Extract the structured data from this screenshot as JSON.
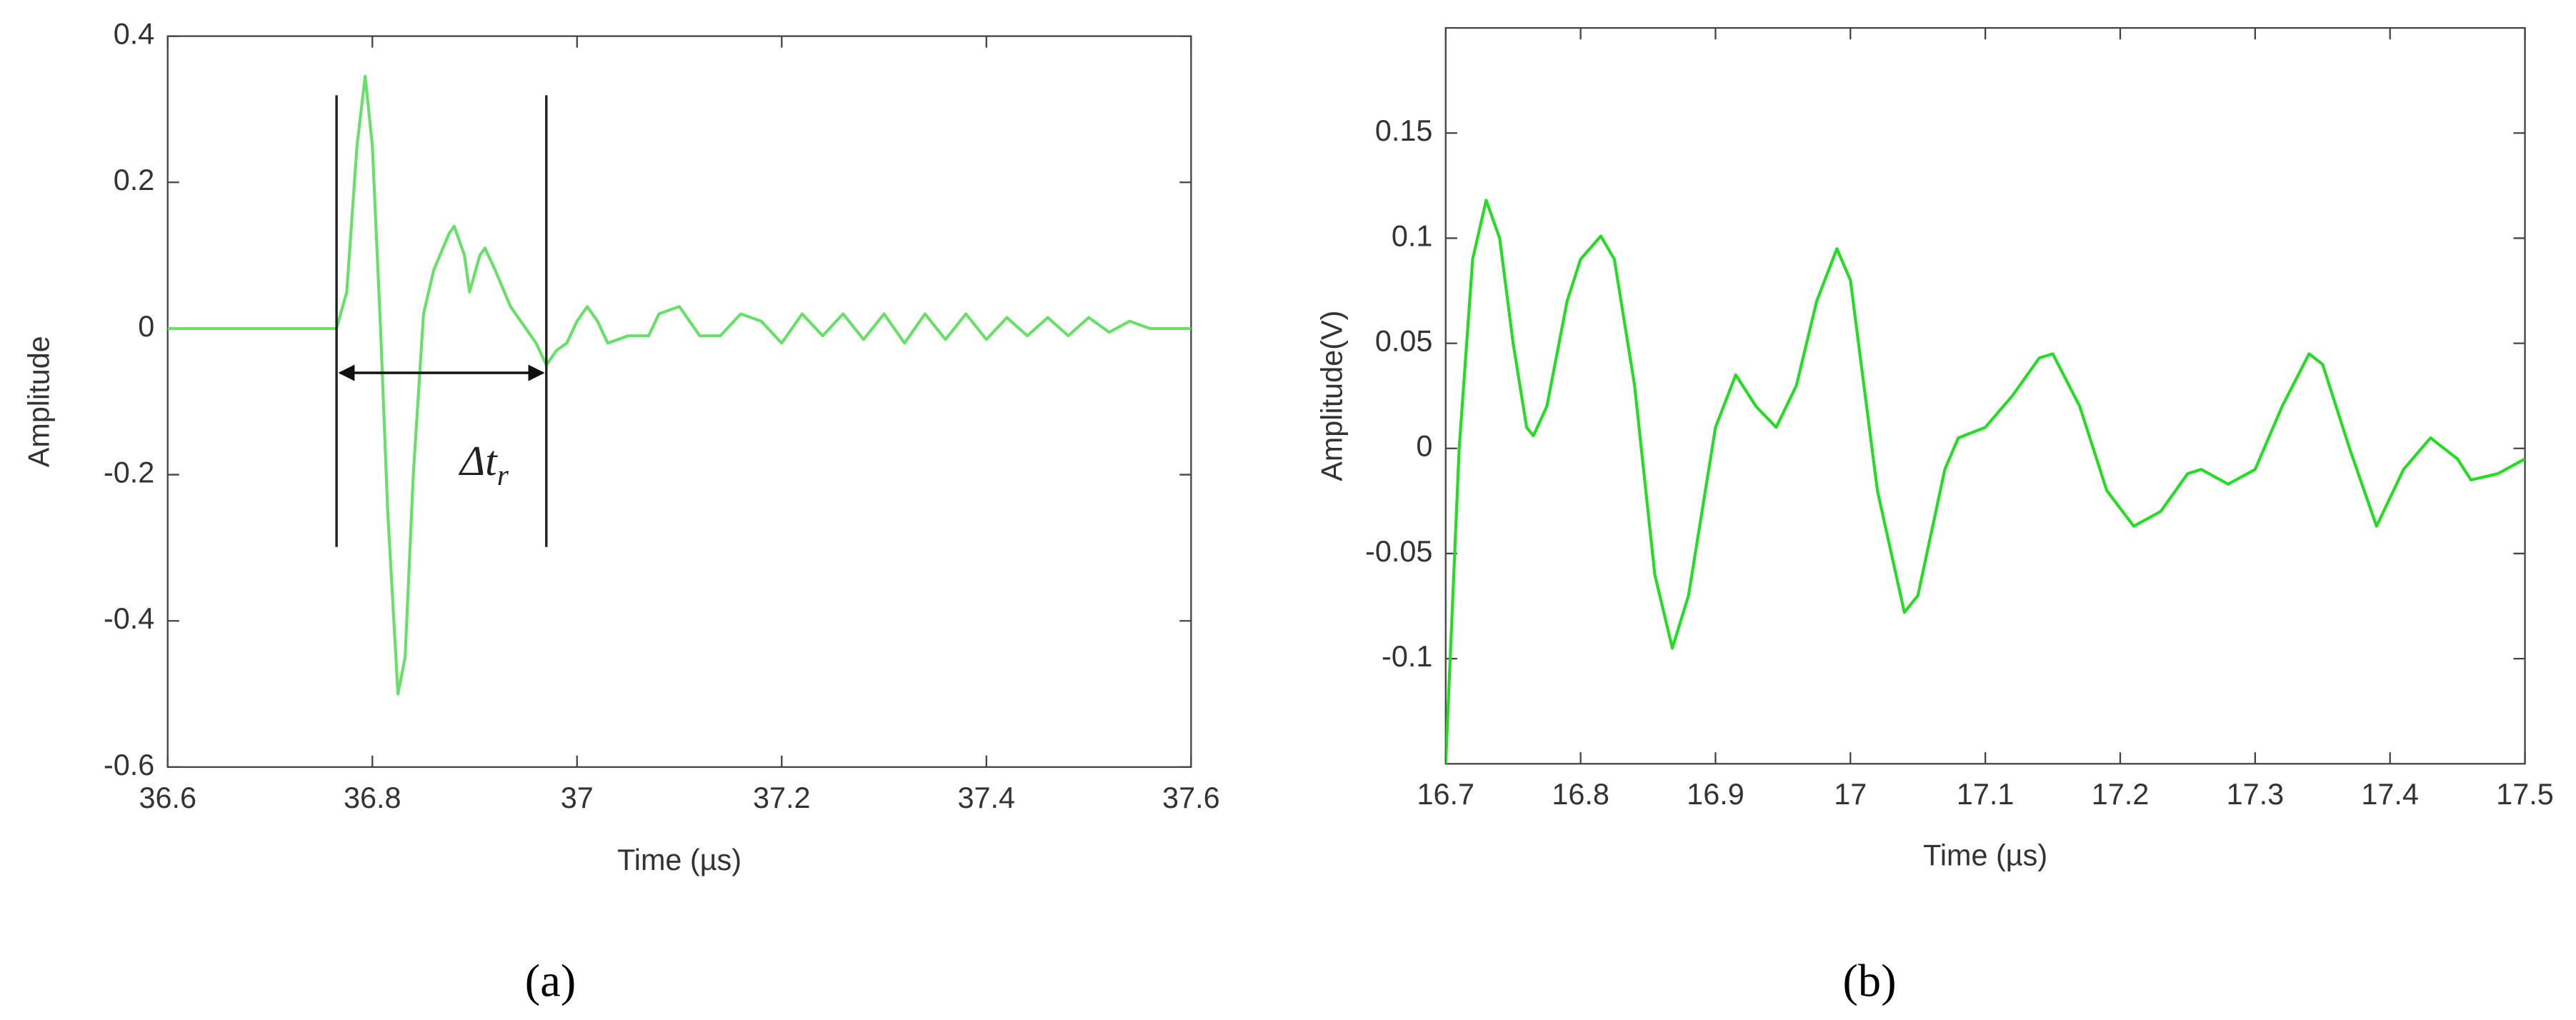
{
  "chart_data": [
    {
      "type": "line",
      "panel_label": "(a)",
      "xlabel": "Time (µs)",
      "ylabel": "Amplitude",
      "xlim": [
        36.6,
        37.6
      ],
      "ylim": [
        -0.6,
        0.4
      ],
      "xticks": [
        36.6,
        36.8,
        37,
        37.2,
        37.4,
        37.6
      ],
      "yticks": [
        -0.6,
        -0.4,
        -0.2,
        0,
        0.2,
        0.4
      ],
      "grid": false,
      "color": "#66e066",
      "markers": [
        36.765,
        36.97
      ],
      "annotation": {
        "text": "Δt",
        "subscript": "r"
      },
      "x": [
        36.6,
        36.7,
        36.765,
        36.775,
        36.785,
        36.793,
        36.8,
        36.808,
        36.815,
        36.825,
        36.832,
        36.84,
        36.85,
        36.86,
        36.875,
        36.88,
        36.89,
        36.895,
        36.905,
        36.91,
        36.92,
        36.935,
        36.95,
        36.96,
        36.97,
        36.98,
        36.99,
        37.0,
        37.01,
        37.02,
        37.03,
        37.05,
        37.07,
        37.08,
        37.1,
        37.12,
        37.14,
        37.16,
        37.18,
        37.2,
        37.22,
        37.24,
        37.26,
        37.28,
        37.3,
        37.32,
        37.34,
        37.36,
        37.38,
        37.4,
        37.42,
        37.44,
        37.46,
        37.48,
        37.5,
        37.52,
        37.54,
        37.56,
        37.6
      ],
      "values": [
        0,
        0,
        0,
        0.05,
        0.25,
        0.345,
        0.25,
        0.0,
        -0.25,
        -0.5,
        -0.45,
        -0.2,
        0.02,
        0.08,
        0.13,
        0.14,
        0.1,
        0.05,
        0.1,
        0.11,
        0.08,
        0.03,
        0,
        -0.02,
        -0.05,
        -0.03,
        -0.02,
        0.01,
        0.03,
        0.01,
        -0.02,
        -0.01,
        -0.01,
        0.02,
        0.03,
        -0.01,
        -0.01,
        0.02,
        0.01,
        -0.02,
        0.02,
        -0.01,
        0.02,
        -0.015,
        0.02,
        -0.02,
        0.02,
        -0.015,
        0.02,
        -0.015,
        0.015,
        -0.01,
        0.015,
        -0.01,
        0.015,
        -0.005,
        0.01,
        0,
        0
      ]
    },
    {
      "type": "line",
      "panel_label": "(b)",
      "xlabel": "Time (µs)",
      "ylabel": "Amplitude(V)",
      "xlim": [
        16.7,
        17.5
      ],
      "ylim": [
        -0.15,
        0.2
      ],
      "xticks": [
        16.7,
        16.8,
        16.9,
        17,
        17.1,
        17.2,
        17.3,
        17.4,
        17.5
      ],
      "yticks": [
        -0.1,
        -0.05,
        0,
        0.05,
        0.1,
        0.15
      ],
      "grid": false,
      "color": "#22dd22",
      "x": [
        16.7,
        16.71,
        16.72,
        16.73,
        16.74,
        16.75,
        16.76,
        16.765,
        16.775,
        16.79,
        16.8,
        16.815,
        16.825,
        16.84,
        16.855,
        16.868,
        16.88,
        16.9,
        16.915,
        16.93,
        16.945,
        16.96,
        16.975,
        16.99,
        17.0,
        17.02,
        17.04,
        17.05,
        17.07,
        17.08,
        17.1,
        17.12,
        17.14,
        17.15,
        17.17,
        17.19,
        17.21,
        17.23,
        17.25,
        17.26,
        17.28,
        17.3,
        17.32,
        17.34,
        17.35,
        17.37,
        17.39,
        17.41,
        17.43,
        17.45,
        17.46,
        17.48,
        17.5
      ],
      "values": [
        -0.15,
        0.0,
        0.09,
        0.118,
        0.1,
        0.05,
        0.01,
        0.006,
        0.02,
        0.07,
        0.09,
        0.101,
        0.09,
        0.03,
        -0.06,
        -0.095,
        -0.07,
        0.01,
        0.035,
        0.02,
        0.01,
        0.03,
        0.07,
        0.095,
        0.08,
        -0.02,
        -0.078,
        -0.07,
        -0.01,
        0.005,
        0.01,
        0.025,
        0.043,
        0.045,
        0.02,
        -0.02,
        -0.037,
        -0.03,
        -0.012,
        -0.01,
        -0.017,
        -0.01,
        0.02,
        0.045,
        0.04,
        0.0,
        -0.037,
        -0.01,
        0.005,
        -0.005,
        -0.015,
        -0.012,
        -0.005
      ]
    }
  ]
}
